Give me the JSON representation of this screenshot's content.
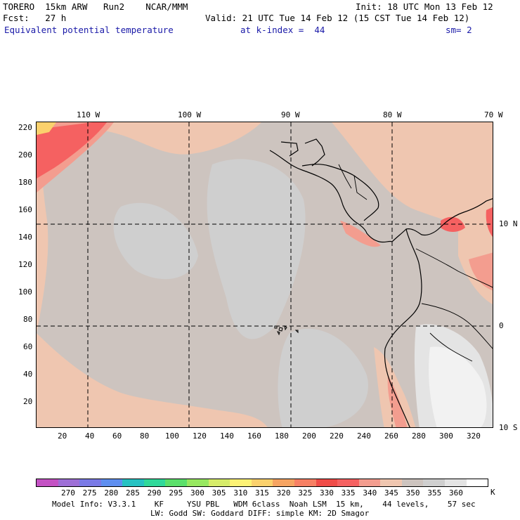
{
  "header": {
    "line1_left": "TORERO  15km ARW   Run2    NCAR/MMM",
    "line1_right": "Init: 18 UTC Mon 13 Feb 12",
    "line2_left": "Fcst:   27 h",
    "line2_right": "Valid: 21 UTC Tue 14 Feb 12 (15 CST Tue 14 Feb 12)",
    "field": "Equivalent potential temperature",
    "level": "at k-index =  44",
    "smoothing": "sm= 2"
  },
  "map": {
    "top_lon_labels": [
      "110 W",
      "100 W",
      "90 W",
      "80 W",
      "70 W"
    ],
    "right_lat_labels": [
      "10 N",
      "0",
      "10 S"
    ],
    "y_ticks": [
      "220",
      "200",
      "180",
      "160",
      "140",
      "120",
      "100",
      "80",
      "60",
      "40",
      "20"
    ],
    "x_ticks": [
      "20",
      "40",
      "60",
      "80",
      "100",
      "120",
      "140",
      "160",
      "180",
      "200",
      "220",
      "240",
      "260",
      "280",
      "300",
      "320"
    ],
    "background_color": "#cdc4bf",
    "dominant_field_range": "345-350 K"
  },
  "colorbar": {
    "colors": [
      "#c452c4",
      "#9e6fd6",
      "#7a7ae6",
      "#5f8ff0",
      "#27c2c2",
      "#30d99a",
      "#5be06b",
      "#97e860",
      "#d6ec6a",
      "#fdf275",
      "#fbd16d",
      "#f6a462",
      "#f78064",
      "#f04c48",
      "#f56161",
      "#f39d8f",
      "#efc6b0",
      "#cdc4bf",
      "#cfcfcf",
      "#e4e4e4",
      "#ffffff"
    ],
    "labels": [
      "270",
      "275",
      "280",
      "285",
      "290",
      "295",
      "300",
      "305",
      "310",
      "315",
      "320",
      "325",
      "330",
      "335",
      "340",
      "345",
      "350",
      "355",
      "360"
    ],
    "unit": "K"
  },
  "footer": {
    "line1": "Model Info: V3.3.1    KF     YSU PBL   WDM 6class  Noah LSM  15 km,    44 levels,    57 sec",
    "line2": "LW: Godd SW: Goddard DIFF: simple KM: 2D Smagor"
  }
}
